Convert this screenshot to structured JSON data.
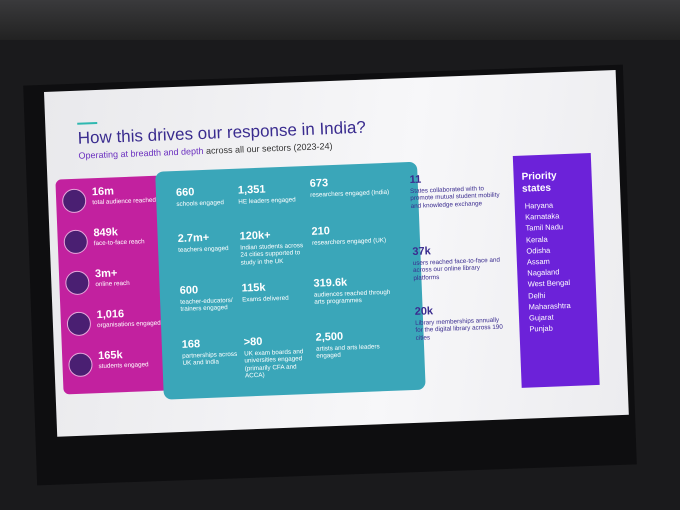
{
  "title": "How this drives our response in India?",
  "subtitle": {
    "highlight": "Operating at breadth and depth",
    "rest": "across all our sectors (2023-24)"
  },
  "left_panel": {
    "items": [
      {
        "value": "16m",
        "label": "total audience reached"
      },
      {
        "value": "849k",
        "label": "face-to-face reach"
      },
      {
        "value": "3m+",
        "label": "online reach"
      },
      {
        "value": "1,016",
        "label": "organisations engaged"
      },
      {
        "value": "165k",
        "label": "students engaged"
      }
    ]
  },
  "main_panel": {
    "columns": [
      [
        {
          "value": "660",
          "label": "schools engaged"
        },
        {
          "value": "2.7m+",
          "label": "teachers engaged"
        },
        {
          "value": "600",
          "label": "teacher-educators/ trainers engaged"
        },
        {
          "value": "168",
          "label": "partnerships across UK and India"
        }
      ],
      [
        {
          "value": "1,351",
          "label": "HE leaders engaged"
        },
        {
          "value": "120k+",
          "label": "Indian students across 24 cities supported to study in the UK"
        },
        {
          "value": "115k",
          "label": "Exams delivered"
        },
        {
          "value": ">80",
          "label": "UK exam boards and universities engaged (primarily CFA and ACCA)"
        }
      ],
      [
        {
          "value": "673",
          "label": "researchers engaged (India)"
        },
        {
          "value": "210",
          "label": "researchers engaged (UK)"
        },
        {
          "value": "319.6k",
          "label": "audiences reached through arts programmes"
        },
        {
          "value": "2,500",
          "label": "artists and arts leaders engaged"
        }
      ],
      [
        {
          "value": "11",
          "label": "States collaborated with to promote mutual student mobility and knowledge exchange"
        },
        {
          "value": "37k",
          "label": "users reached face-to-face and across our online library platforms"
        },
        {
          "value": "20k",
          "label": "Library memberships annually for the digital library across 190 cities"
        }
      ]
    ]
  },
  "priority_states": {
    "title": "Priority states",
    "states": [
      "Haryana",
      "Karnataka",
      "Tamil Nadu",
      "Kerala",
      "Odisha",
      "Assam",
      "Nagaland",
      "West Bengal",
      "Delhi",
      "Maharashtra",
      "Gujarat",
      "Punjab"
    ]
  }
}
